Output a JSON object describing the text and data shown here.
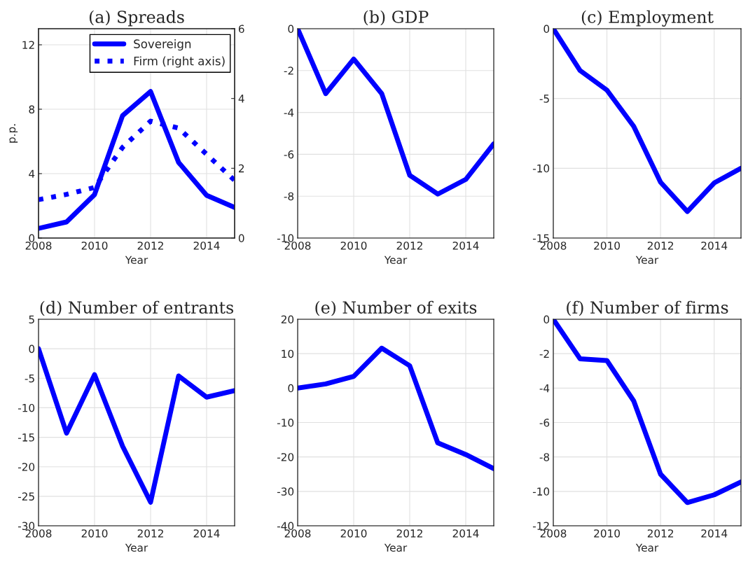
{
  "chart_data": [
    {
      "type": "line",
      "title": "(a) Spreads",
      "xlabel": "Year",
      "ylabel": "p.p.",
      "x": [
        2008,
        2009,
        2010,
        2011,
        2012,
        2013,
        2014,
        2015
      ],
      "xlim": [
        2008,
        2015
      ],
      "xticks": [
        2008,
        2010,
        2012,
        2014
      ],
      "ylim": [
        0,
        13
      ],
      "yticks": [
        0,
        4,
        8,
        12
      ],
      "y2lim": [
        0,
        6
      ],
      "y2ticks": [
        0,
        2,
        4,
        6
      ],
      "grid": true,
      "legend": "top",
      "series": [
        {
          "name": "Sovereign",
          "color": "#0000ff",
          "line_style": "solid",
          "values": [
            0.6,
            1.0,
            2.7,
            7.6,
            9.1,
            4.7,
            2.65,
            1.9
          ]
        },
        {
          "name": "Firm (right axis)",
          "color": "#0000ff",
          "line_style": "dotted",
          "axis": "y2",
          "values": [
            1.1,
            1.25,
            1.45,
            2.6,
            3.35,
            3.15,
            2.4,
            1.65
          ]
        }
      ]
    },
    {
      "type": "line",
      "title": "(b) GDP",
      "xlabel": "Year",
      "x": [
        2008,
        2009,
        2010,
        2011,
        2012,
        2013,
        2014,
        2015
      ],
      "xlim": [
        2008,
        2015
      ],
      "xticks": [
        2008,
        2010,
        2012,
        2014
      ],
      "ylim": [
        -10,
        0
      ],
      "yticks": [
        -10,
        -8,
        -6,
        -4,
        -2,
        0
      ],
      "grid": true,
      "series": [
        {
          "color": "#0000ff",
          "values": [
            0,
            -3.1,
            -1.45,
            -3.1,
            -7.0,
            -7.9,
            -7.2,
            -5.5
          ]
        }
      ]
    },
    {
      "type": "line",
      "title": "(c) Employment",
      "xlabel": "Year",
      "x": [
        2008,
        2009,
        2010,
        2011,
        2012,
        2013,
        2014,
        2015
      ],
      "xlim": [
        2008,
        2015
      ],
      "xticks": [
        2008,
        2010,
        2012,
        2014
      ],
      "ylim": [
        -15,
        0
      ],
      "yticks": [
        -15,
        -10,
        -5,
        0
      ],
      "grid": true,
      "series": [
        {
          "color": "#0000ff",
          "values": [
            0,
            -3.0,
            -4.4,
            -7.0,
            -11.0,
            -13.1,
            -11.05,
            -10.0
          ]
        }
      ]
    },
    {
      "type": "line",
      "title": "(d) Number of entrants",
      "xlabel": "Year",
      "x": [
        2008,
        2009,
        2010,
        2011,
        2012,
        2013,
        2014,
        2015
      ],
      "xlim": [
        2008,
        2015
      ],
      "xticks": [
        2008,
        2010,
        2012,
        2014
      ],
      "ylim": [
        -30,
        5
      ],
      "yticks": [
        -30,
        -25,
        -20,
        -15,
        -10,
        -5,
        0,
        5
      ],
      "grid": true,
      "series": [
        {
          "color": "#0000ff",
          "values": [
            0,
            -14.3,
            -4.4,
            -16.5,
            -26,
            -4.6,
            -8.2,
            -7.1
          ]
        }
      ]
    },
    {
      "type": "line",
      "title": "(e) Number of exits",
      "xlabel": "Year",
      "x": [
        2008,
        2009,
        2010,
        2011,
        2012,
        2013,
        2014,
        2015
      ],
      "xlim": [
        2008,
        2015
      ],
      "xticks": [
        2008,
        2010,
        2012,
        2014
      ],
      "ylim": [
        -40,
        20
      ],
      "yticks": [
        -40,
        -30,
        -20,
        -10,
        0,
        10,
        20
      ],
      "grid": true,
      "series": [
        {
          "color": "#0000ff",
          "values": [
            0,
            1.2,
            3.4,
            11.6,
            6.5,
            -15.9,
            -19.3,
            -23.4
          ]
        }
      ]
    },
    {
      "type": "line",
      "title": "(f) Number of firms",
      "xlabel": "Year",
      "x": [
        2008,
        2009,
        2010,
        2011,
        2012,
        2013,
        2014,
        2015
      ],
      "xlim": [
        2008,
        2015
      ],
      "xticks": [
        2008,
        2010,
        2012,
        2014
      ],
      "ylim": [
        -12,
        0
      ],
      "yticks": [
        -12,
        -10,
        -8,
        -6,
        -4,
        -2,
        0
      ],
      "grid": true,
      "series": [
        {
          "color": "#0000ff",
          "values": [
            0,
            -2.3,
            -2.4,
            -4.75,
            -9.0,
            -10.65,
            -10.2,
            -9.45
          ]
        }
      ]
    }
  ]
}
